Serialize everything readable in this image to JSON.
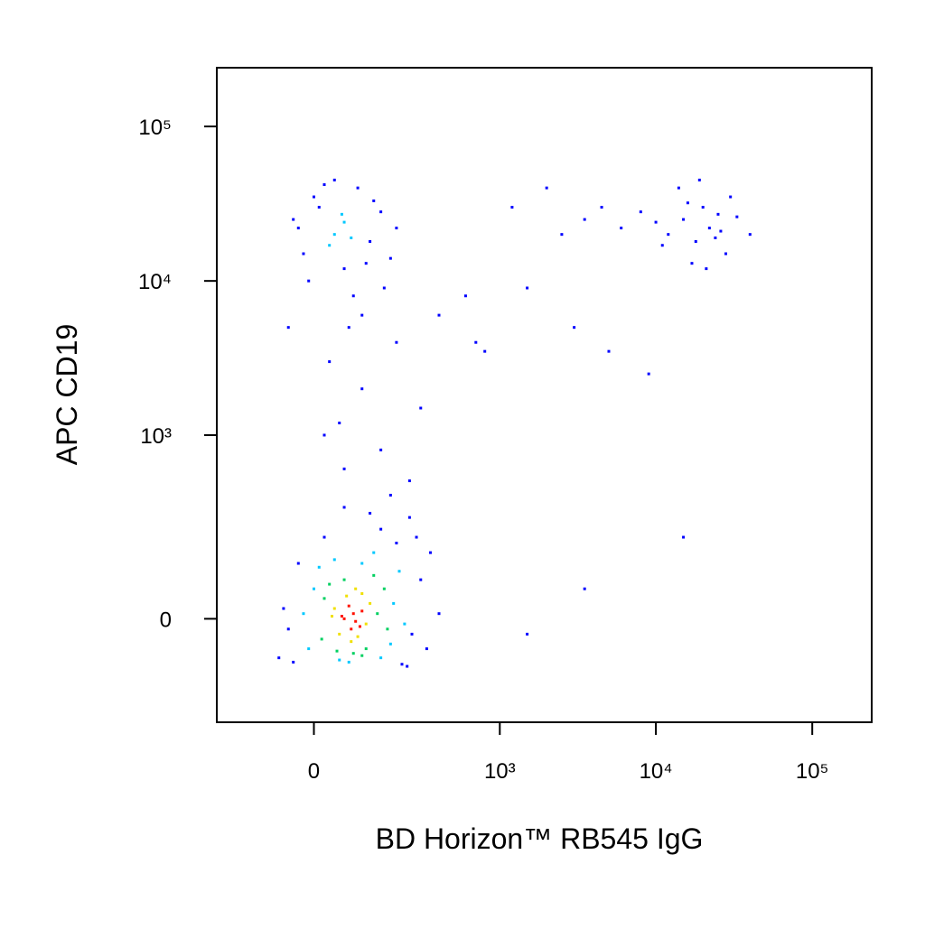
{
  "chart_data": {
    "type": "scatter",
    "x_label": "BD Horizon™ RB545 IgG",
    "y_label": "APC CD19",
    "xscale": "biexponential",
    "yscale": "biexponential",
    "xlim": [
      -256,
      240000
    ],
    "ylim": [
      -290,
      240000
    ],
    "xticks": [
      0,
      {
        "value": 1000,
        "label": "10³"
      },
      {
        "value": 10000,
        "label": "10⁴"
      },
      {
        "value": 100000,
        "label": "10⁵"
      }
    ],
    "yticks": [
      0,
      {
        "value": 1000,
        "label": "10³"
      },
      {
        "value": 10000,
        "label": "10⁴"
      },
      {
        "value": 100000,
        "label": "10⁵"
      }
    ],
    "series": [
      {
        "color": "#0000ff",
        "x": [
          -40,
          -60,
          260,
          300,
          -30,
          240,
          20,
          150,
          200,
          -50,
          280,
          350,
          120,
          220,
          330,
          -70,
          180,
          60,
          400,
          250,
          -20,
          -40,
          120,
          150,
          0,
          90,
          180,
          -10,
          20,
          110,
          60,
          130,
          200,
          -30,
          40,
          80,
          160,
          10,
          100,
          70,
          30,
          100,
          200,
          400,
          600,
          -50,
          50,
          150,
          300,
          800,
          1500,
          2500,
          1200,
          700,
          3000,
          5000,
          9000,
          60,
          20,
          250,
          12000,
          15000,
          18000,
          20000,
          22000,
          25000,
          28000,
          30000,
          10000,
          14000,
          17000,
          24000,
          19000,
          26000,
          33000,
          11000,
          16000,
          21000,
          8000,
          40000,
          3500,
          4500,
          2000,
          6000,
          15000,
          3500,
          1500
        ],
        "y": [
          -90,
          20,
          -30,
          80,
          120,
          -100,
          200,
          230,
          180,
          -20,
          200,
          150,
          300,
          -95,
          -60,
          -80,
          400,
          330,
          10,
          280,
          15000,
          25000,
          18000,
          28000,
          35000,
          40000,
          14000,
          10000,
          42000,
          13000,
          12000,
          33000,
          22000,
          22000,
          45000,
          8000,
          9000,
          30000,
          6000,
          5000,
          3000,
          2000,
          4000,
          6000,
          8000,
          5000,
          1200,
          800,
          1500,
          3500,
          9000,
          20000,
          30000,
          4000,
          5000,
          3500,
          2500,
          600,
          1000,
          500,
          20000,
          25000,
          18000,
          30000,
          22000,
          27000,
          15000,
          35000,
          24000,
          40000,
          13000,
          19000,
          45000,
          21000,
          26000,
          17000,
          32000,
          12000,
          28000,
          20000,
          25000,
          30000,
          40000,
          22000,
          200,
          60,
          -30
        ]
      },
      {
        "color": "#00c8ff",
        "x": [
          0,
          190,
          40,
          150,
          -10,
          210,
          70,
          130,
          10,
          180,
          50,
          100,
          -20,
          230,
          40,
          60,
          30,
          75,
          55
        ],
        "y": [
          60,
          30,
          130,
          -80,
          -60,
          100,
          -90,
          150,
          110,
          -50,
          -85,
          120,
          10,
          -10,
          20000,
          24000,
          17000,
          19000,
          27000
        ]
      },
      {
        "color": "#00d060",
        "x": [
          20,
          140,
          60,
          110,
          15,
          160,
          80,
          130,
          30,
          45,
          100,
          170
        ],
        "y": [
          40,
          10,
          80,
          -60,
          -40,
          60,
          -70,
          90,
          70,
          -65,
          -75,
          -20
        ]
      },
      {
        "color": "#f0e000",
        "x": [
          40,
          110,
          65,
          90,
          50,
          120,
          75,
          100,
          35,
          85
        ],
        "y": [
          20,
          -10,
          45,
          -35,
          -30,
          30,
          -45,
          50,
          5,
          60
        ]
      },
      {
        "color": "#ff1000",
        "x": [
          60,
          80,
          95,
          70,
          85,
          100,
          55,
          75
        ],
        "y": [
          0,
          10,
          -15,
          25,
          -5,
          15,
          5,
          -20
        ]
      }
    ]
  }
}
